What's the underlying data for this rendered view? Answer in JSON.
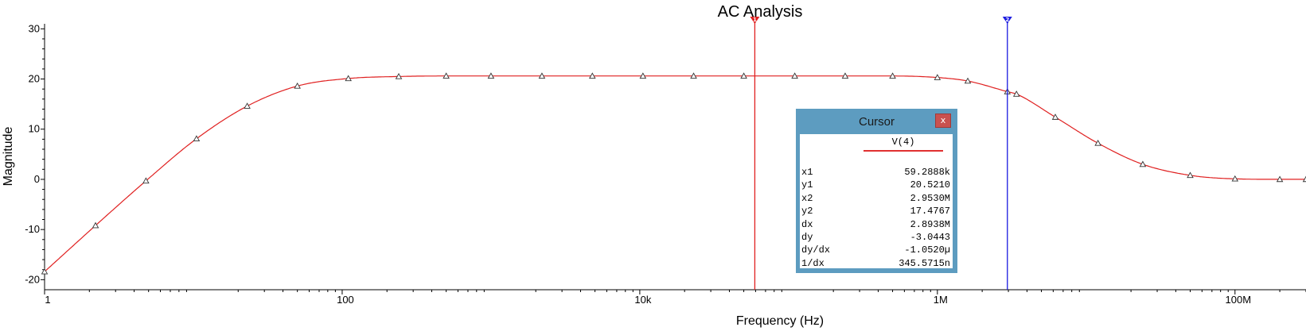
{
  "chart_data": {
    "type": "line",
    "title": "AC Analysis",
    "xlabel": "Frequency (Hz)",
    "ylabel": "Magnitude",
    "xscale": "log",
    "xlim": [
      1,
      300000000
    ],
    "ylim": [
      -22,
      31
    ],
    "x_tick_values": [
      1,
      100,
      10000,
      1000000,
      100000000
    ],
    "x_tick_labels": [
      "1",
      "100",
      "10k",
      "1M",
      "100M"
    ],
    "y_ticks": [
      -20,
      -10,
      0,
      10,
      20,
      30
    ],
    "grid": false,
    "series": [
      {
        "color": "#e02020",
        "x": [
          1,
          2.2,
          4.8,
          10.5,
          23,
          50,
          110,
          240,
          500,
          1000,
          2200,
          4800,
          10500,
          23000,
          50000,
          110000,
          240000,
          500000,
          1000000,
          1600000,
          2953000,
          3400000,
          6200000,
          12000000,
          24000000,
          50000000,
          100000000,
          200000000,
          300000000
        ],
        "y": [
          -18.4,
          -9.2,
          -0.3,
          8.1,
          14.6,
          18.6,
          20.1,
          20.5,
          20.6,
          20.6,
          20.6,
          20.6,
          20.6,
          20.6,
          20.6,
          20.6,
          20.6,
          20.6,
          20.3,
          19.6,
          17.48,
          17.0,
          12.4,
          7.2,
          3.0,
          0.8,
          0.1,
          0.0,
          0.0
        ]
      }
    ],
    "cursors": [
      {
        "label": "1",
        "x": 59288.8,
        "color": "#e02020"
      },
      {
        "label": "2",
        "x": 2953000,
        "color": "#1a1ae0"
      }
    ]
  },
  "cursor_panel": {
    "title": "Cursor",
    "close_label": "x",
    "series_name": "V(4)",
    "rows": [
      {
        "key": "x1",
        "value": "59.2888k"
      },
      {
        "key": "y1",
        "value": "20.5210"
      },
      {
        "key": "x2",
        "value": "2.9530M"
      },
      {
        "key": "y2",
        "value": "17.4767"
      },
      {
        "key": "dx",
        "value": "2.8938M"
      },
      {
        "key": "dy",
        "value": "-3.0443"
      },
      {
        "key": "dy/dx",
        "value": "-1.0520µ"
      },
      {
        "key": "1/dx",
        "value": "345.5715n"
      }
    ]
  }
}
